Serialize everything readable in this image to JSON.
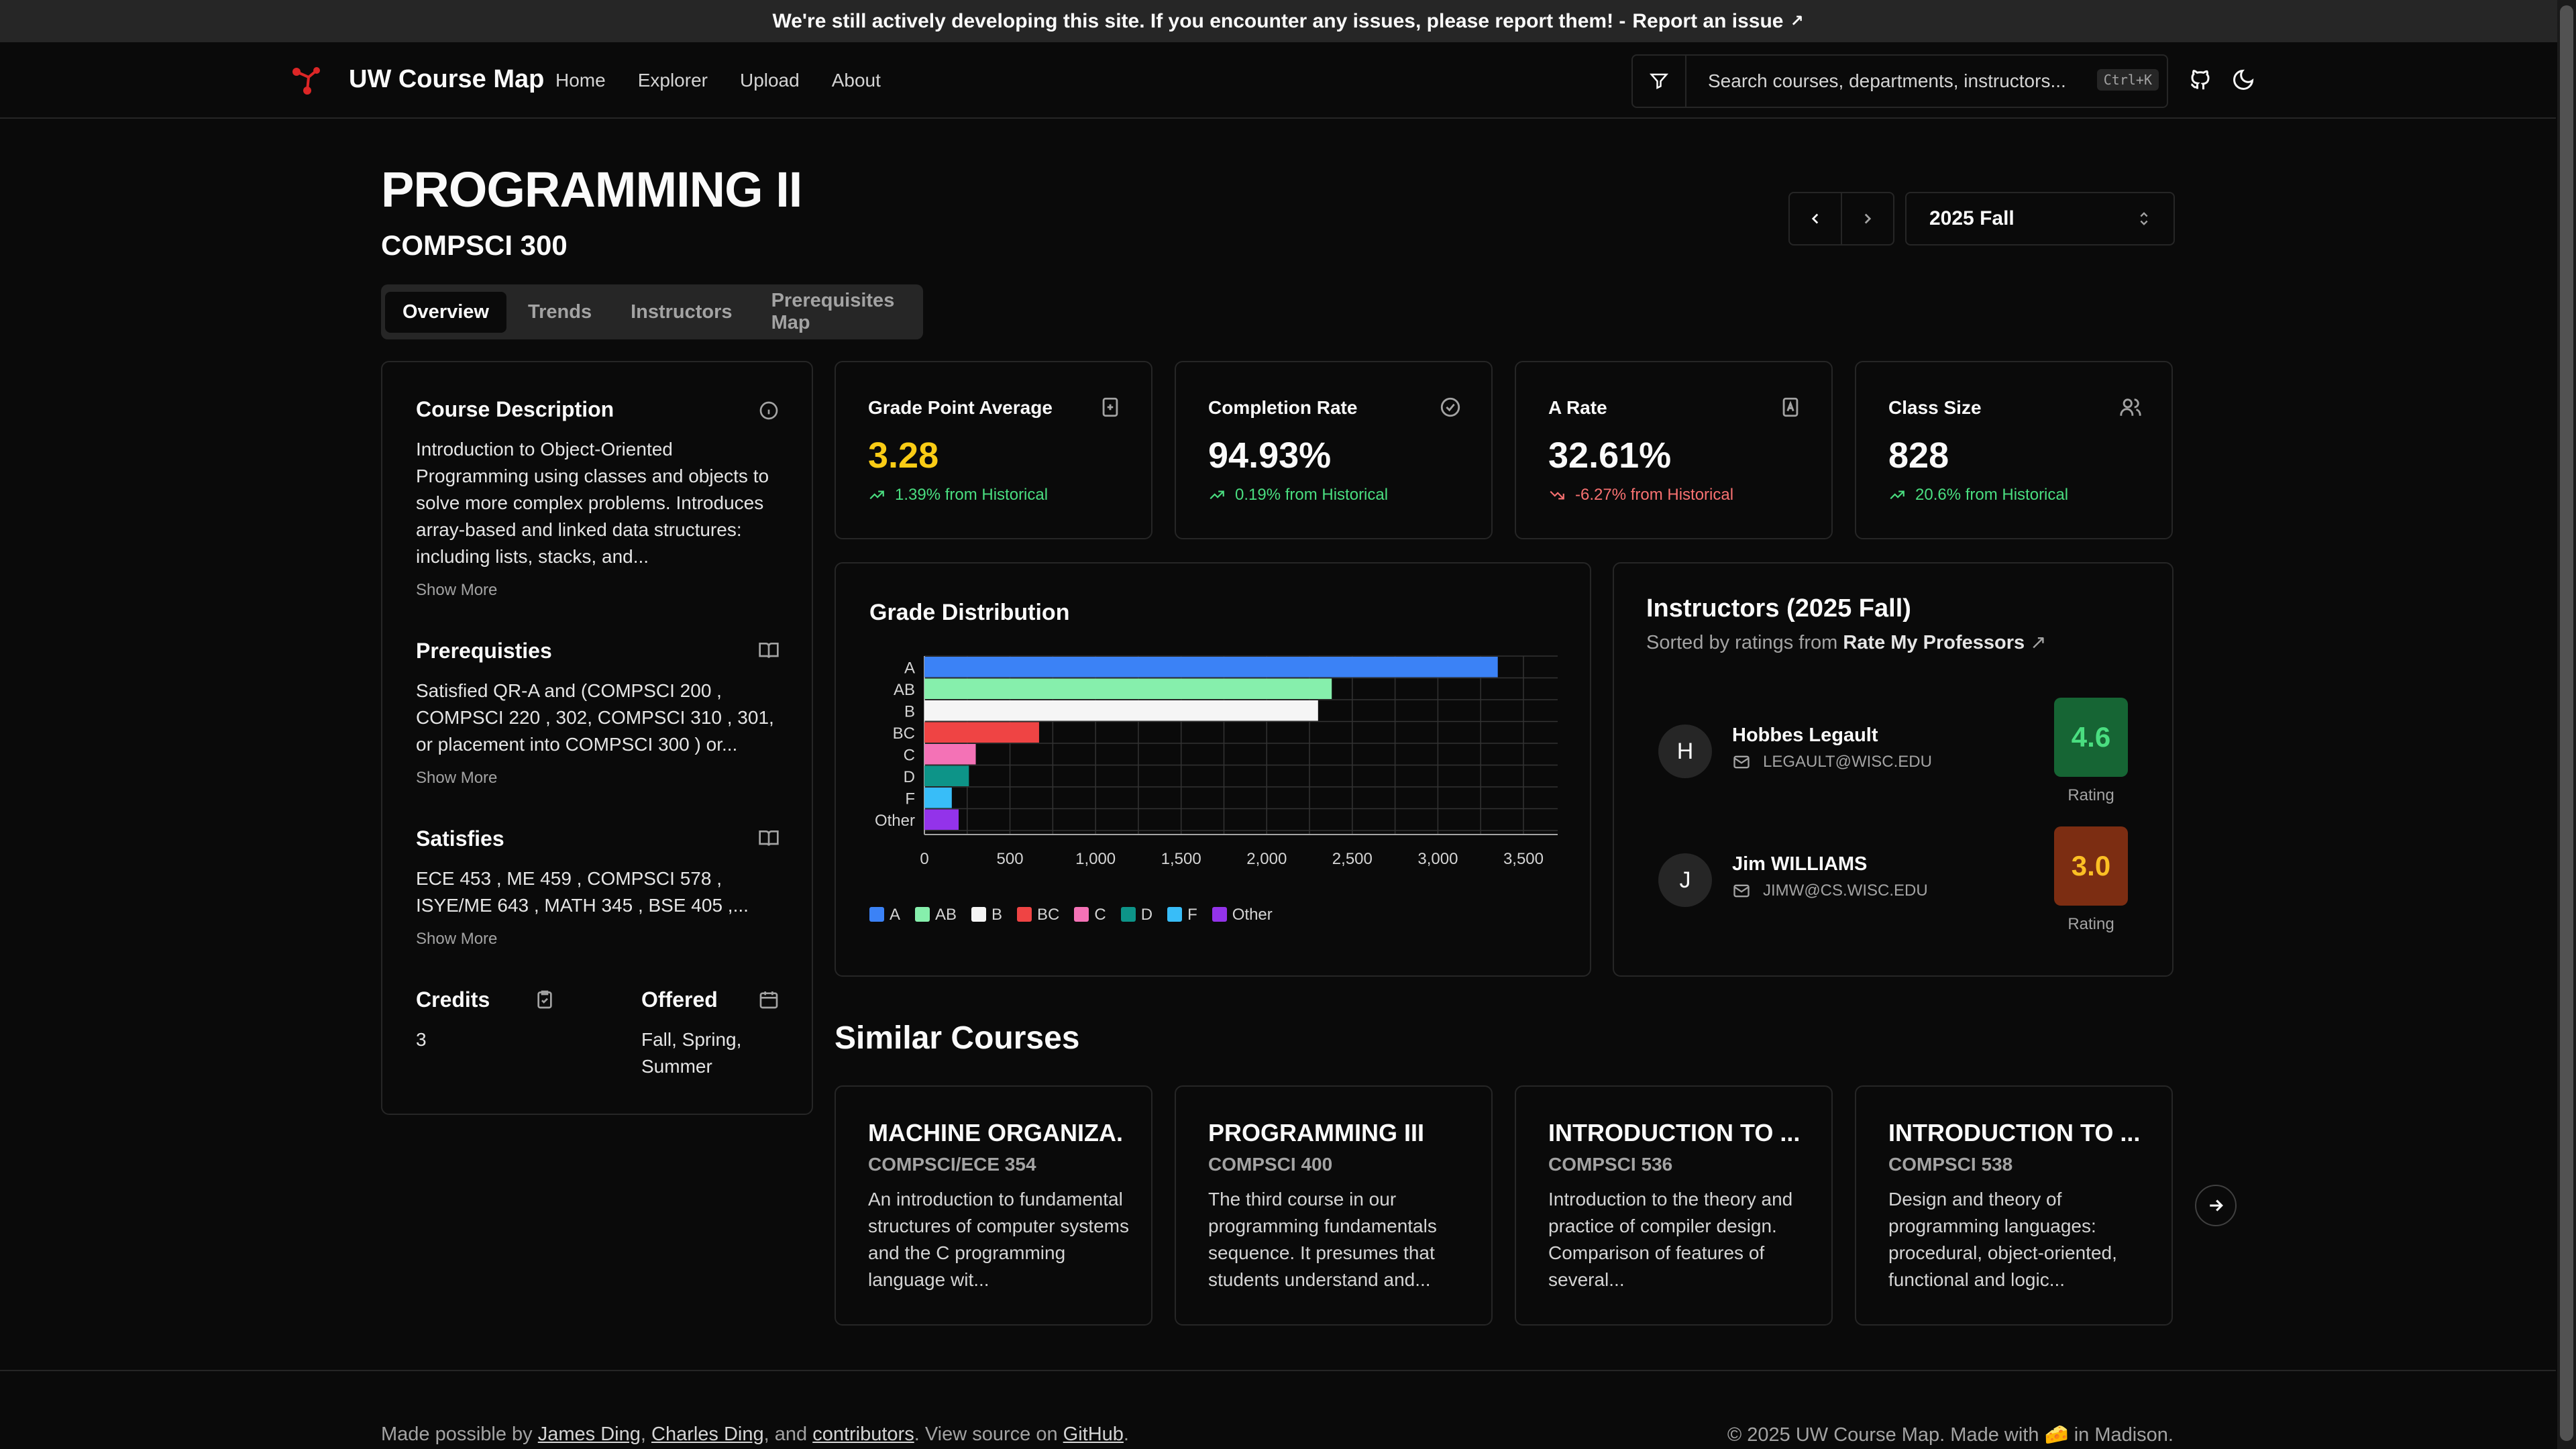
{
  "banner": {
    "text": "We're still actively developing this site. If you encounter any issues, please report them! -",
    "link": "Report an issue"
  },
  "nav": {
    "brand": "UW Course Map",
    "links": [
      "Home",
      "Explorer",
      "Upload",
      "About"
    ],
    "search_placeholder": "Search courses, departments, instructors...",
    "shortcut": "Ctrl+K"
  },
  "course": {
    "title": "PROGRAMMING II",
    "code": "COMPSCI 300"
  },
  "tabs": [
    "Overview",
    "Trends",
    "Instructors",
    "Prerequisites Map"
  ],
  "term": {
    "selected": "2025 Fall"
  },
  "description": {
    "title": "Course Description",
    "text": "Introduction to Object-Oriented Programming using classes and objects to solve more complex problems. Introduces array-based and linked data structures: including lists, stacks, and...",
    "show_more": "Show More"
  },
  "prereqs": {
    "title": "Prerequisties",
    "text": "Satisfied QR-A and (COMPSCI 200 , COMPSCI 220 , 302, COMPSCI 310 , 301, or placement into COMPSCI 300 ) or...",
    "show_more": "Show More"
  },
  "satisfies": {
    "title": "Satisfies",
    "text": "ECE 453 , ME 459 , COMPSCI 578 , ISYE/ME 643 , MATH 345 , BSE 405 ,...",
    "show_more": "Show More"
  },
  "credits": {
    "title": "Credits",
    "value": "3"
  },
  "offered": {
    "title": "Offered",
    "value": "Fall, Spring, Summer"
  },
  "stats": [
    {
      "label": "Grade Point Average",
      "value": "3.28",
      "change": "1.39% from Historical",
      "trend": "up",
      "value_color": "#facc15"
    },
    {
      "label": "Completion Rate",
      "value": "94.93%",
      "change": "0.19% from Historical",
      "trend": "up",
      "value_color": "#fafafa"
    },
    {
      "label": "A Rate",
      "value": "32.61%",
      "change": "-6.27% from Historical",
      "trend": "down",
      "value_color": "#fafafa"
    },
    {
      "label": "Class Size",
      "value": "828",
      "change": "20.6% from Historical",
      "trend": "up",
      "value_color": "#fafafa"
    }
  ],
  "grade_dist": {
    "title": "Grade Distribution"
  },
  "chart_data": {
    "type": "bar",
    "orientation": "horizontal",
    "categories": [
      "A",
      "AB",
      "B",
      "BC",
      "C",
      "D",
      "F",
      "Other"
    ],
    "values": [
      3350,
      2380,
      2300,
      670,
      300,
      260,
      160,
      200
    ],
    "colors": [
      "#3b82f6",
      "#86efac",
      "#f5f5f5",
      "#ef4444",
      "#f472b6",
      "#0d9488",
      "#38bdf8",
      "#9333ea"
    ],
    "xlim": [
      0,
      3700
    ],
    "xticks": [
      0,
      500,
      1000,
      1500,
      2000,
      2500,
      3000,
      3500
    ],
    "xtick_labels": [
      "0",
      "500",
      "1,000",
      "1,500",
      "2,000",
      "2,500",
      "3,000",
      "3,500"
    ],
    "grid": true,
    "legend": "bottom-left"
  },
  "instructors": {
    "title": "Instructors (2025 Fall)",
    "sub_prefix": "Sorted by ratings from",
    "sub_link": "Rate My Professors",
    "list": [
      {
        "initial": "H",
        "name": "Hobbes Legault",
        "email": "LEGAULT@WISC.EDU",
        "rating": "4.6",
        "rating_bg": "#166534",
        "rating_color": "#4ade80",
        "rating_label": "Rating"
      },
      {
        "initial": "J",
        "name": "Jim WILLIAMS",
        "email": "JIMW@CS.WISC.EDU",
        "rating": "3.0",
        "rating_bg": "#7c2d12",
        "rating_color": "#fbbf24",
        "rating_label": "Rating"
      }
    ]
  },
  "similar": {
    "title": "Similar Courses",
    "courses": [
      {
        "name": "MACHINE ORGANIZA...",
        "code": "COMPSCI/ECE 354",
        "desc": "An introduction to fundamental structures of computer systems and the C programming language wit..."
      },
      {
        "name": "PROGRAMMING III",
        "code": "COMPSCI 400",
        "desc": "The third course in our programming fundamentals sequence. It presumes that students understand and..."
      },
      {
        "name": "INTRODUCTION TO ...",
        "code": "COMPSCI 536",
        "desc": "Introduction to the theory and practice of compiler design. Comparison of features of several..."
      },
      {
        "name": "INTRODUCTION TO ...",
        "code": "COMPSCI 538",
        "desc": "Design and theory of programming languages: procedural, object-oriented, functional and logic..."
      }
    ]
  },
  "footer": {
    "prefix": "Made possible by",
    "person1": "James Ding",
    "person2": "Charles Ding",
    "and": ", and",
    "contrib": "contributors",
    "mid": ". View source on",
    "github": "GitHub",
    "right": "© 2025 UW Course Map. Made with 🧀 in Madison."
  }
}
